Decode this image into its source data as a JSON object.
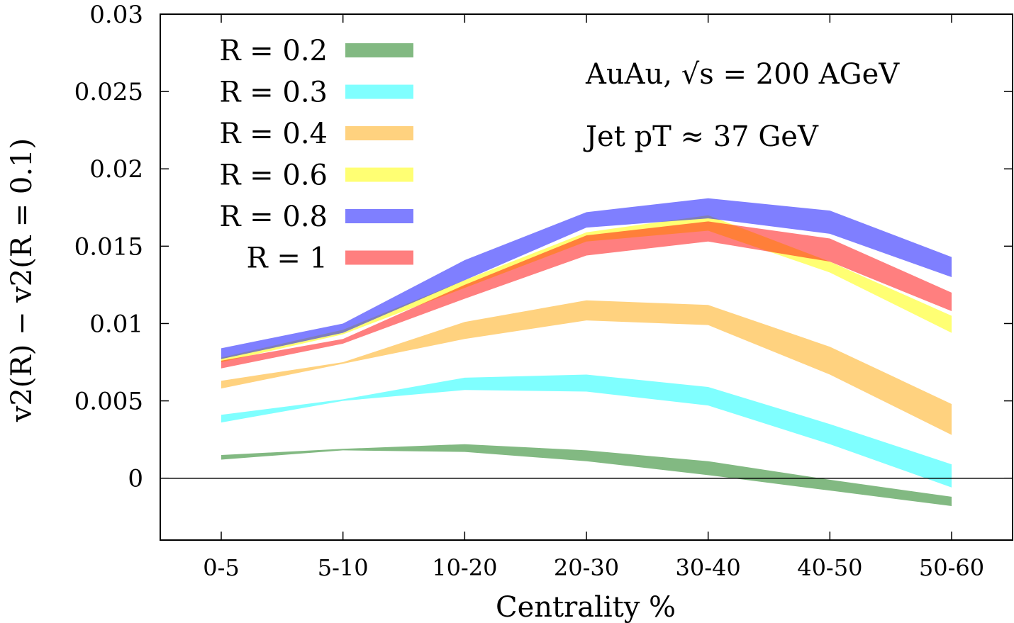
{
  "chart_data": {
    "type": "area",
    "xlabel": "Centrality %",
    "ylabel": "v2(R) − v2(R = 0.1)",
    "categories": [
      "0-5",
      "5-10",
      "10-20",
      "20-30",
      "30-40",
      "40-50",
      "50-60"
    ],
    "ylim": [
      -0.004,
      0.03
    ],
    "yticks": [
      "0",
      "0.005",
      "0.01",
      "0.015",
      "0.02",
      "0.025",
      "0.03"
    ],
    "ytick_values": [
      0,
      0.005,
      0.01,
      0.015,
      0.02,
      0.025,
      0.03
    ],
    "zero_line": true,
    "grid": false,
    "legend_position": "top-left",
    "annotations": {
      "line1": "AuAu, √s = 200 AGeV",
      "line2": "Jet pT ≈ 37 GeV"
    },
    "series": [
      {
        "name": "R = 0.2",
        "color": "#2e8b2e",
        "opacity": 0.6,
        "lower": [
          0.0012,
          0.0018,
          0.0017,
          0.0011,
          0.0002,
          -0.0008,
          -0.0018
        ],
        "upper": [
          0.0015,
          0.0019,
          0.0022,
          0.0018,
          0.0011,
          -0.0001,
          -0.0012
        ]
      },
      {
        "name": "R = 0.3",
        "color": "#00ffff",
        "opacity": 0.5,
        "lower": [
          0.0036,
          0.005,
          0.0057,
          0.0056,
          0.0047,
          0.0022,
          -0.0006
        ],
        "upper": [
          0.0041,
          0.0051,
          0.0065,
          0.0067,
          0.0059,
          0.0035,
          0.0009
        ]
      },
      {
        "name": "R = 0.4",
        "color": "#ffa500",
        "opacity": 0.5,
        "lower": [
          0.0058,
          0.0074,
          0.009,
          0.0102,
          0.0099,
          0.0067,
          0.0028
        ],
        "upper": [
          0.0063,
          0.0075,
          0.0101,
          0.0115,
          0.0112,
          0.0085,
          0.0048
        ]
      },
      {
        "name": "R = 0.6",
        "color": "#ffff00",
        "opacity": 0.55,
        "lower": [
          0.0075,
          0.0093,
          0.0123,
          0.0153,
          0.016,
          0.0133,
          0.0094
        ],
        "upper": [
          0.0078,
          0.0096,
          0.0128,
          0.0159,
          0.017,
          0.014,
          0.0105
        ]
      },
      {
        "name": "R = 0.8",
        "color": "#0000ff",
        "opacity": 0.5,
        "lower": [
          0.0077,
          0.0094,
          0.0128,
          0.0162,
          0.0168,
          0.0158,
          0.013
        ],
        "upper": [
          0.0084,
          0.01,
          0.0141,
          0.0172,
          0.0181,
          0.0173,
          0.0143
        ]
      },
      {
        "name": "R = 1",
        "color": "#ff0000",
        "opacity": 0.5,
        "lower": [
          0.0071,
          0.0087,
          0.0116,
          0.0144,
          0.0153,
          0.014,
          0.0108
        ],
        "upper": [
          0.0076,
          0.009,
          0.0125,
          0.0157,
          0.0166,
          0.0155,
          0.012
        ]
      }
    ]
  }
}
